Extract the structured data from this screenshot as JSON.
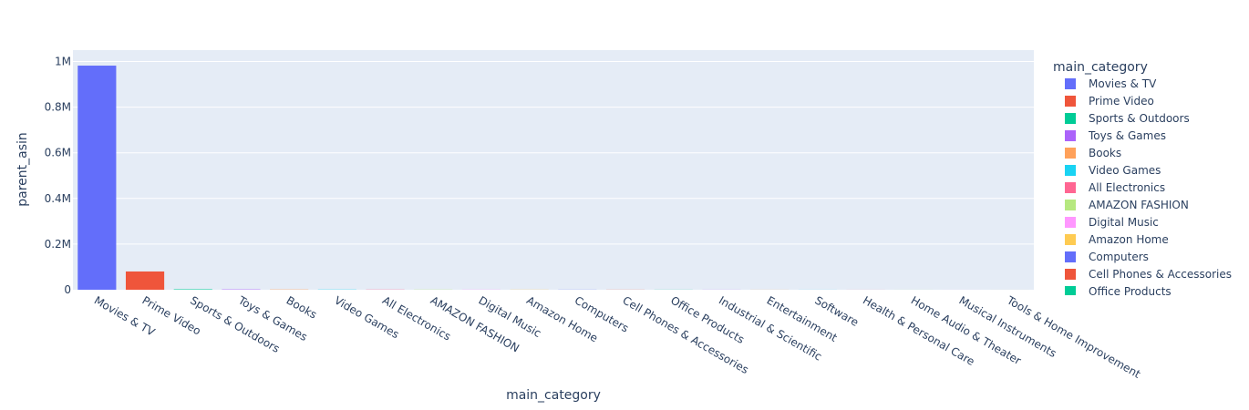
{
  "chart_data": {
    "type": "bar",
    "xlabel": "main_category",
    "ylabel": "parent_asin",
    "ylim": [
      0,
      1050000
    ],
    "yticks": [
      {
        "value": 0,
        "label": "0"
      },
      {
        "value": 200000,
        "label": "0.2M"
      },
      {
        "value": 400000,
        "label": "0.4M"
      },
      {
        "value": 600000,
        "label": "0.6M"
      },
      {
        "value": 800000,
        "label": "0.8M"
      },
      {
        "value": 1000000,
        "label": "1M"
      }
    ],
    "grid": true,
    "legend_title": "main_category",
    "legend_position": "right",
    "categories": [
      "Movies & TV",
      "Prime Video",
      "Sports & Outdoors",
      "Toys & Games",
      "Books",
      "Video Games",
      "All Electronics",
      "AMAZON FASHION",
      "Digital Music",
      "Amazon Home",
      "Computers",
      "Cell Phones & Accessories",
      "Office Products",
      "Industrial & Scientific",
      "Entertainment",
      "Software",
      "Health & Personal Care",
      "Home Audio & Theater",
      "Musical Instruments",
      "Tools & Home Improvement"
    ],
    "values": [
      982000,
      80000,
      2000,
      1500,
      1200,
      1000,
      900,
      800,
      700,
      600,
      500,
      450,
      400,
      350,
      300,
      250,
      200,
      150,
      100,
      80
    ],
    "colors": [
      "#636efa",
      "#EF553B",
      "#00cc96",
      "#ab63fa",
      "#FFA15A",
      "#19d3f3",
      "#FF6692",
      "#B6E880",
      "#FF97FF",
      "#FECB52",
      "#636efa",
      "#EF553B",
      "#00cc96",
      "#ab63fa",
      "#FFA15A",
      "#19d3f3",
      "#FF6692",
      "#B6E880",
      "#FF97FF",
      "#FECB52"
    ],
    "legend_visible": [
      "Movies & TV",
      "Prime Video",
      "Sports & Outdoors",
      "Toys & Games",
      "Books",
      "Video Games",
      "All Electronics",
      "AMAZON FASHION",
      "Digital Music",
      "Amazon Home",
      "Computers",
      "Cell Phones & Accessories",
      "Office Products"
    ]
  }
}
